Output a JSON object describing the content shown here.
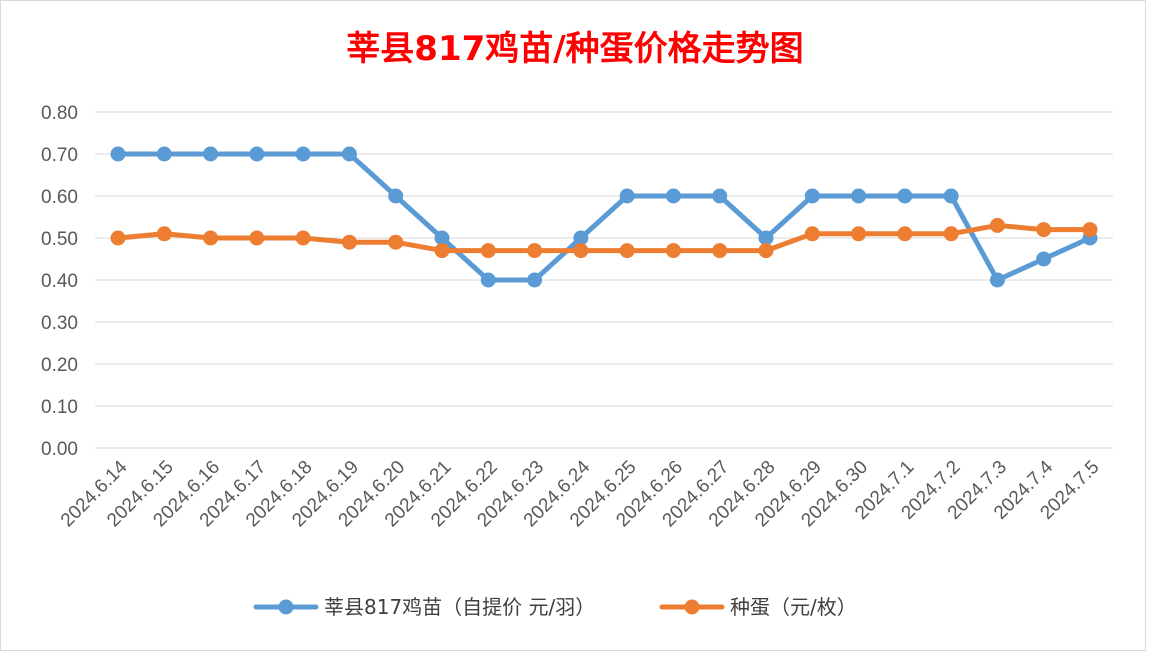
{
  "colors": {
    "title": "#ff0000",
    "series_1": "#5b9bd5",
    "series_2": "#ed7d31",
    "grid": "#d9d9d9",
    "axis_text": "#595959"
  },
  "chart_data": {
    "type": "line",
    "title": "莘县817鸡苗/种蛋价格走势图",
    "xlabel": "",
    "ylabel": "",
    "ylim": [
      0,
      0.8
    ],
    "y_ticks": [
      "0.00",
      "0.10",
      "0.20",
      "0.30",
      "0.40",
      "0.50",
      "0.60",
      "0.70",
      "0.80"
    ],
    "grid": true,
    "legend_position": "bottom",
    "categories": [
      "2024.6.14",
      "2024.6.15",
      "2024.6.16",
      "2024.6.17",
      "2024.6.18",
      "2024.6.19",
      "2024.6.20",
      "2024.6.21",
      "2024.6.22",
      "2024.6.23",
      "2024.6.24",
      "2024.6.25",
      "2024.6.26",
      "2024.6.27",
      "2024.6.28",
      "2024.6.29",
      "2024.6.30",
      "2024.7.1",
      "2024.7.2",
      "2024.7.3",
      "2024.7.4",
      "2024.7.5"
    ],
    "series": [
      {
        "name": "莘县817鸡苗（自提价 元/羽）",
        "values": [
          0.7,
          0.7,
          0.7,
          0.7,
          0.7,
          0.7,
          0.6,
          0.5,
          0.4,
          0.4,
          0.5,
          0.6,
          0.6,
          0.6,
          0.5,
          0.6,
          0.6,
          0.6,
          0.6,
          0.4,
          0.45,
          0.5
        ]
      },
      {
        "name": "种蛋（元/枚）",
        "values": [
          0.5,
          0.51,
          0.5,
          0.5,
          0.5,
          0.49,
          0.49,
          0.47,
          0.47,
          0.47,
          0.47,
          0.47,
          0.47,
          0.47,
          0.47,
          0.51,
          0.51,
          0.51,
          0.51,
          0.53,
          0.52,
          0.52
        ]
      }
    ]
  }
}
